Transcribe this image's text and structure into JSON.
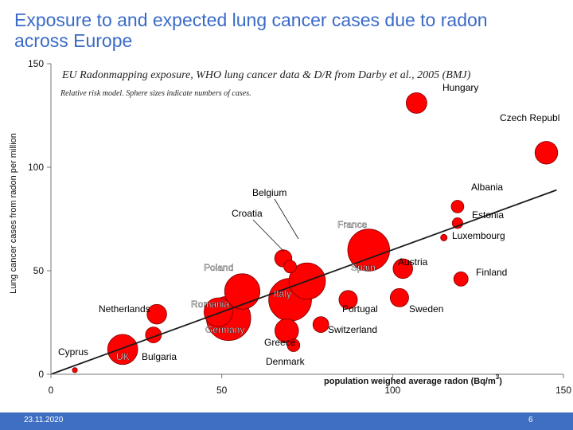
{
  "slide": {
    "title": "Exposure to and expected lung cancer cases due to radon across Europe",
    "date": "23.11.2020",
    "page_number": "6"
  },
  "colors": {
    "title": "#3a6bc8",
    "bubble": "#ff0000",
    "bubble_stroke": "#7a0000",
    "trend_line": "#1a1a1a",
    "footer": "#3f6fc1"
  },
  "chart_data": {
    "type": "scatter",
    "title": "EU Radonmapping exposure, WHO lung cancer data & D/R from Darby et al., 2005 (BMJ)",
    "subtitle": "Relative risk model. Sphere sizes indicate numbers of cases.",
    "xlabel": "population weighed average radon (Bq/m",
    "xlabel_sup": "3",
    "xlabel_end": ")",
    "ylabel": "Lung cancer cases from radon per million",
    "xlim": [
      0,
      150
    ],
    "ylim": [
      0,
      150
    ],
    "x_ticks": [
      "0",
      "50",
      "100",
      "150"
    ],
    "y_ticks": [
      "0",
      "50",
      "100",
      "150"
    ],
    "trend_line": {
      "x": [
        0,
        148
      ],
      "y": [
        0,
        89
      ]
    },
    "points": [
      {
        "name": "Hungary",
        "x": 107,
        "y": 131,
        "size": 9
      },
      {
        "name": "Czech Republ",
        "x": 145,
        "y": 107,
        "size": 11
      },
      {
        "name": "Albania",
        "x": 119,
        "y": 81,
        "size": 3
      },
      {
        "name": "Estonia",
        "x": 119,
        "y": 73,
        "size": 2
      },
      {
        "name": "Luxembourg",
        "x": 115,
        "y": 66,
        "size": 0.6
      },
      {
        "name": "France",
        "x": 93,
        "y": 60,
        "size": 40
      },
      {
        "name": "Austria",
        "x": 103,
        "y": 51,
        "size": 8
      },
      {
        "name": "Finland",
        "x": 120,
        "y": 46,
        "size": 4
      },
      {
        "name": "Spain",
        "x": 75,
        "y": 45,
        "size": 30
      },
      {
        "name": "Belgium",
        "x": 68,
        "y": 56,
        "size": 6
      },
      {
        "name": "Croatia",
        "x": 70,
        "y": 52,
        "size": 3
      },
      {
        "name": "Poland",
        "x": 56,
        "y": 40,
        "size": 28
      },
      {
        "name": "Italy",
        "x": 70,
        "y": 36,
        "size": 42
      },
      {
        "name": "Sweden",
        "x": 102,
        "y": 37,
        "size": 7
      },
      {
        "name": "Portugal",
        "x": 87,
        "y": 36,
        "size": 7
      },
      {
        "name": "Romania",
        "x": 49,
        "y": 30,
        "size": 18
      },
      {
        "name": "Netherlands",
        "x": 31,
        "y": 29,
        "size": 8
      },
      {
        "name": "Germany",
        "x": 52,
        "y": 27,
        "size": 45
      },
      {
        "name": "Switzerland",
        "x": 79,
        "y": 24,
        "size": 5
      },
      {
        "name": "Greece",
        "x": 69,
        "y": 21,
        "size": 12
      },
      {
        "name": "Denmark",
        "x": 71,
        "y": 14,
        "size": 3
      },
      {
        "name": "UK",
        "x": 21,
        "y": 12,
        "size": 20
      },
      {
        "name": "Bulgaria",
        "x": 30,
        "y": 19,
        "size": 5
      },
      {
        "name": "Cyprus",
        "x": 7,
        "y": 2,
        "size": 0.3
      }
    ]
  }
}
